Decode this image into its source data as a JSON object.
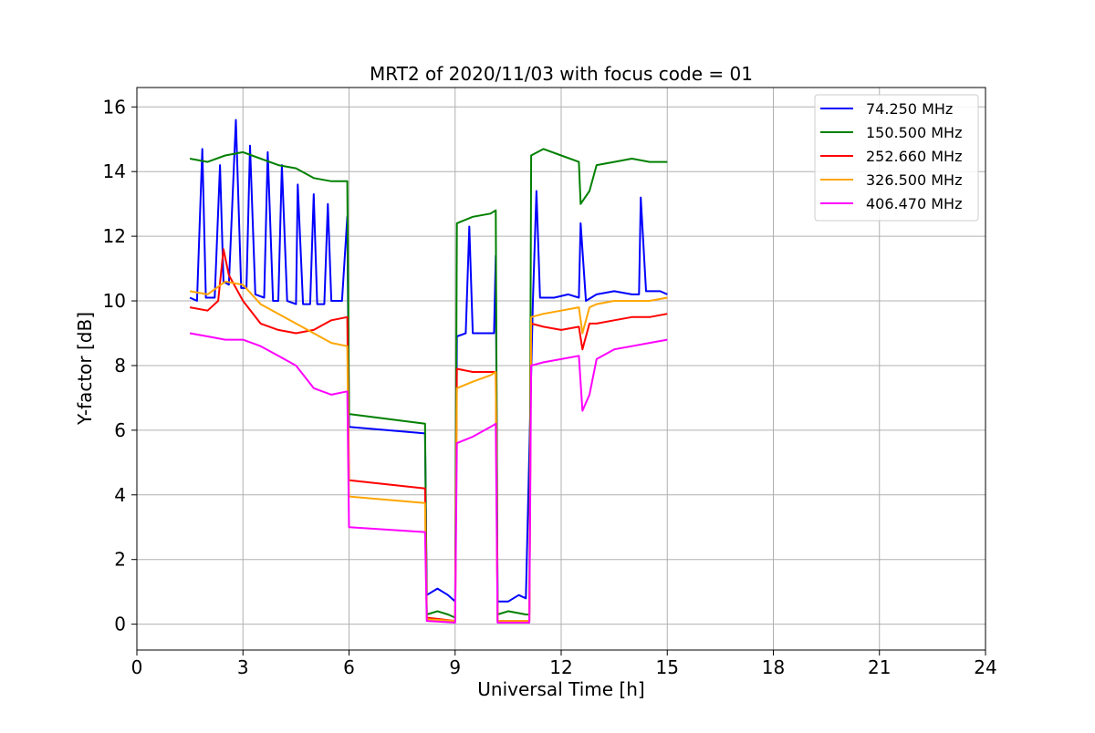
{
  "chart_data": {
    "type": "line",
    "title": "MRT2 of 2020/11/03 with focus code = 01",
    "xlabel": "Universal Time [h]",
    "ylabel": "Y-factor [dB]",
    "xlim": [
      0,
      24
    ],
    "ylim": [
      -0.8,
      16.6
    ],
    "x_ticks": [
      "0",
      "3",
      "6",
      "9",
      "12",
      "15",
      "18",
      "21",
      "24"
    ],
    "y_ticks": [
      "0",
      "2",
      "4",
      "6",
      "8",
      "10",
      "12",
      "14",
      "16"
    ],
    "grid": true,
    "legend_position": "top-right",
    "series": [
      {
        "name": " 74.250 MHz",
        "color": "#0000ff",
        "points": [
          [
            1.5,
            10.1
          ],
          [
            1.7,
            10.0
          ],
          [
            1.85,
            14.7
          ],
          [
            1.95,
            10.1
          ],
          [
            2.2,
            10.1
          ],
          [
            2.35,
            14.2
          ],
          [
            2.45,
            10.6
          ],
          [
            2.6,
            10.5
          ],
          [
            2.8,
            15.6
          ],
          [
            2.95,
            10.4
          ],
          [
            3.1,
            10.4
          ],
          [
            3.2,
            14.8
          ],
          [
            3.35,
            10.2
          ],
          [
            3.6,
            10.1
          ],
          [
            3.7,
            14.6
          ],
          [
            3.85,
            10.0
          ],
          [
            4.0,
            10.0
          ],
          [
            4.1,
            14.2
          ],
          [
            4.25,
            10.0
          ],
          [
            4.5,
            9.9
          ],
          [
            4.55,
            13.6
          ],
          [
            4.7,
            9.9
          ],
          [
            4.9,
            9.9
          ],
          [
            5.0,
            13.3
          ],
          [
            5.1,
            9.9
          ],
          [
            5.3,
            9.9
          ],
          [
            5.4,
            13.0
          ],
          [
            5.5,
            10.0
          ],
          [
            5.8,
            10.0
          ],
          [
            5.95,
            12.6
          ],
          [
            6.0,
            6.1
          ],
          [
            8.15,
            5.9
          ],
          [
            8.2,
            0.9
          ],
          [
            8.5,
            1.1
          ],
          [
            8.8,
            0.9
          ],
          [
            9.0,
            0.7
          ],
          [
            9.05,
            8.9
          ],
          [
            9.3,
            9.0
          ],
          [
            9.4,
            12.3
          ],
          [
            9.5,
            9.0
          ],
          [
            9.9,
            9.0
          ],
          [
            10.1,
            9.0
          ],
          [
            10.15,
            11.4
          ],
          [
            10.2,
            0.7
          ],
          [
            10.5,
            0.7
          ],
          [
            10.8,
            0.9
          ],
          [
            11.0,
            0.8
          ],
          [
            11.2,
            10.0
          ],
          [
            11.3,
            13.4
          ],
          [
            11.4,
            10.1
          ],
          [
            11.8,
            10.1
          ],
          [
            12.2,
            10.2
          ],
          [
            12.5,
            10.1
          ],
          [
            12.55,
            12.4
          ],
          [
            12.7,
            10.0
          ],
          [
            13.0,
            10.2
          ],
          [
            13.5,
            10.3
          ],
          [
            14.0,
            10.2
          ],
          [
            14.2,
            10.2
          ],
          [
            14.25,
            13.2
          ],
          [
            14.4,
            10.3
          ],
          [
            14.8,
            10.3
          ],
          [
            15.0,
            10.2
          ]
        ]
      },
      {
        "name": "150.500 MHz",
        "color": "#008000",
        "points": [
          [
            1.5,
            14.4
          ],
          [
            2.0,
            14.3
          ],
          [
            2.5,
            14.5
          ],
          [
            3.0,
            14.6
          ],
          [
            3.5,
            14.4
          ],
          [
            4.0,
            14.2
          ],
          [
            4.5,
            14.1
          ],
          [
            5.0,
            13.8
          ],
          [
            5.5,
            13.7
          ],
          [
            5.95,
            13.7
          ],
          [
            6.0,
            6.5
          ],
          [
            8.15,
            6.2
          ],
          [
            8.2,
            0.3
          ],
          [
            8.5,
            0.4
          ],
          [
            8.8,
            0.3
          ],
          [
            9.0,
            0.2
          ],
          [
            9.05,
            12.4
          ],
          [
            9.5,
            12.6
          ],
          [
            10.0,
            12.7
          ],
          [
            10.15,
            12.8
          ],
          [
            10.2,
            0.3
          ],
          [
            10.5,
            0.4
          ],
          [
            11.0,
            0.3
          ],
          [
            11.1,
            0.3
          ],
          [
            11.15,
            14.5
          ],
          [
            11.5,
            14.7
          ],
          [
            12.0,
            14.5
          ],
          [
            12.5,
            14.3
          ],
          [
            12.55,
            13.0
          ],
          [
            12.8,
            13.4
          ],
          [
            13.0,
            14.2
          ],
          [
            13.5,
            14.3
          ],
          [
            14.0,
            14.4
          ],
          [
            14.5,
            14.3
          ],
          [
            15.0,
            14.3
          ]
        ]
      },
      {
        "name": "252.660 MHz",
        "color": "#ff0000",
        "points": [
          [
            1.5,
            9.8
          ],
          [
            2.0,
            9.7
          ],
          [
            2.3,
            10.0
          ],
          [
            2.45,
            11.6
          ],
          [
            2.6,
            10.8
          ],
          [
            3.0,
            10.0
          ],
          [
            3.5,
            9.3
          ],
          [
            4.0,
            9.1
          ],
          [
            4.5,
            9.0
          ],
          [
            5.0,
            9.1
          ],
          [
            5.5,
            9.4
          ],
          [
            5.95,
            9.5
          ],
          [
            6.0,
            4.45
          ],
          [
            8.15,
            4.2
          ],
          [
            8.2,
            0.2
          ],
          [
            9.0,
            0.1
          ],
          [
            9.05,
            7.9
          ],
          [
            9.5,
            7.8
          ],
          [
            10.0,
            7.8
          ],
          [
            10.15,
            7.8
          ],
          [
            10.2,
            0.1
          ],
          [
            11.1,
            0.1
          ],
          [
            11.15,
            9.3
          ],
          [
            11.5,
            9.2
          ],
          [
            12.0,
            9.1
          ],
          [
            12.5,
            9.2
          ],
          [
            12.6,
            8.5
          ],
          [
            12.8,
            9.3
          ],
          [
            13.0,
            9.3
          ],
          [
            13.5,
            9.4
          ],
          [
            14.0,
            9.5
          ],
          [
            14.5,
            9.5
          ],
          [
            15.0,
            9.6
          ]
        ]
      },
      {
        "name": "326.500 MHz",
        "color": "#ffa500",
        "points": [
          [
            1.5,
            10.3
          ],
          [
            2.0,
            10.2
          ],
          [
            2.5,
            10.6
          ],
          [
            3.0,
            10.5
          ],
          [
            3.5,
            9.9
          ],
          [
            4.0,
            9.6
          ],
          [
            4.5,
            9.3
          ],
          [
            5.0,
            9.0
          ],
          [
            5.5,
            8.7
          ],
          [
            5.95,
            8.6
          ],
          [
            6.0,
            3.95
          ],
          [
            8.15,
            3.75
          ],
          [
            8.2,
            0.15
          ],
          [
            9.0,
            0.1
          ],
          [
            9.05,
            7.3
          ],
          [
            9.5,
            7.5
          ],
          [
            10.0,
            7.7
          ],
          [
            10.15,
            7.8
          ],
          [
            10.2,
            0.1
          ],
          [
            11.1,
            0.1
          ],
          [
            11.15,
            9.5
          ],
          [
            11.5,
            9.6
          ],
          [
            12.0,
            9.7
          ],
          [
            12.5,
            9.8
          ],
          [
            12.6,
            9.0
          ],
          [
            12.8,
            9.8
          ],
          [
            13.0,
            9.9
          ],
          [
            13.5,
            10.0
          ],
          [
            14.0,
            10.0
          ],
          [
            14.5,
            10.0
          ],
          [
            15.0,
            10.1
          ]
        ]
      },
      {
        "name": "406.470 MHz",
        "color": "#ff00ff",
        "points": [
          [
            1.5,
            9.0
          ],
          [
            2.0,
            8.9
          ],
          [
            2.5,
            8.8
          ],
          [
            3.0,
            8.8
          ],
          [
            3.5,
            8.6
          ],
          [
            4.0,
            8.3
          ],
          [
            4.5,
            8.0
          ],
          [
            5.0,
            7.3
          ],
          [
            5.5,
            7.1
          ],
          [
            5.95,
            7.2
          ],
          [
            6.0,
            3.0
          ],
          [
            8.15,
            2.85
          ],
          [
            8.2,
            0.1
          ],
          [
            9.0,
            0.05
          ],
          [
            9.05,
            5.6
          ],
          [
            9.5,
            5.8
          ],
          [
            10.0,
            6.1
          ],
          [
            10.15,
            6.2
          ],
          [
            10.2,
            0.05
          ],
          [
            11.1,
            0.05
          ],
          [
            11.15,
            8.0
          ],
          [
            11.5,
            8.1
          ],
          [
            12.0,
            8.2
          ],
          [
            12.5,
            8.3
          ],
          [
            12.6,
            6.6
          ],
          [
            12.8,
            7.1
          ],
          [
            13.0,
            8.2
          ],
          [
            13.5,
            8.5
          ],
          [
            14.0,
            8.6
          ],
          [
            14.5,
            8.7
          ],
          [
            15.0,
            8.8
          ]
        ]
      }
    ]
  }
}
